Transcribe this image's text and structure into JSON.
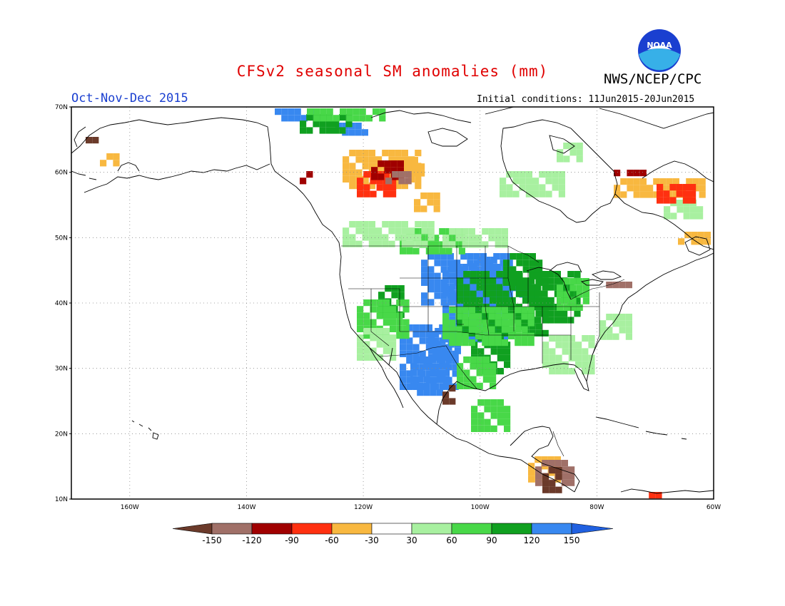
{
  "title": "CFSv2 seasonal SM anomalies (mm)",
  "agency": "NWS/NCEP/CPC",
  "logo_text": "NOAA",
  "season": "Oct-Nov-Dec 2015",
  "initial_conditions": "Initial conditions: 11Jun2015-20Jun2015",
  "lat_labels": [
    "70N",
    "60N",
    "50N",
    "40N",
    "30N",
    "20N",
    "10N"
  ],
  "lon_labels": [
    "160W",
    "140W",
    "120W",
    "100W",
    "80W",
    "60W"
  ],
  "colorbar": {
    "tick_labels": [
      "-150",
      "-120",
      "-90",
      "-60",
      "-30",
      "30",
      "60",
      "90",
      "120",
      "150"
    ],
    "colors": [
      "#6b3a2a",
      "#a07068",
      "#a00000",
      "#ff3010",
      "#f8b840",
      "#ffffff",
      "#a8f0a0",
      "#48d848",
      "#10a020",
      "#3888f0",
      "#2060e0"
    ]
  }
}
